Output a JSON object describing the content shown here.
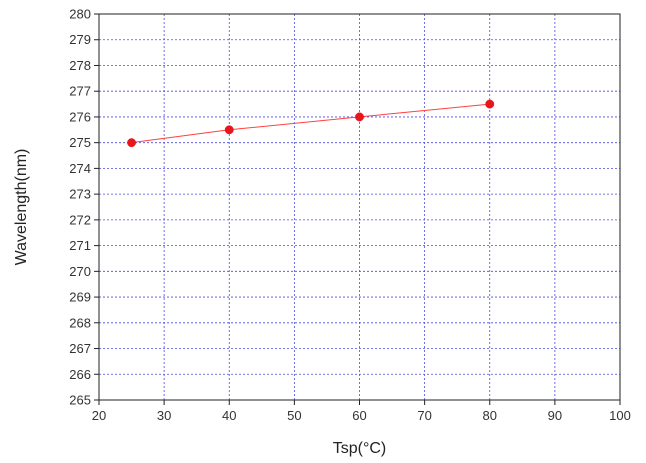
{
  "chart_data": {
    "type": "line",
    "title": "",
    "xlabel": "Tsp(°C)",
    "ylabel": "Wavelength(nm)",
    "xlim": [
      20,
      100
    ],
    "ylim": [
      265,
      280
    ],
    "x_ticks": [
      20,
      30,
      40,
      50,
      60,
      70,
      80,
      90,
      100
    ],
    "y_ticks": [
      265,
      266,
      267,
      268,
      269,
      270,
      271,
      272,
      273,
      274,
      275,
      276,
      277,
      278,
      279,
      280
    ],
    "grid": true,
    "grid_color": "#4a4ae0",
    "series": [
      {
        "x": [
          25,
          40,
          60,
          80
        ],
        "y": [
          275.0,
          275.5,
          276.0,
          276.5
        ],
        "line_color": "#ff4040",
        "marker_color": "#e8161c",
        "marker": "circle"
      }
    ]
  }
}
